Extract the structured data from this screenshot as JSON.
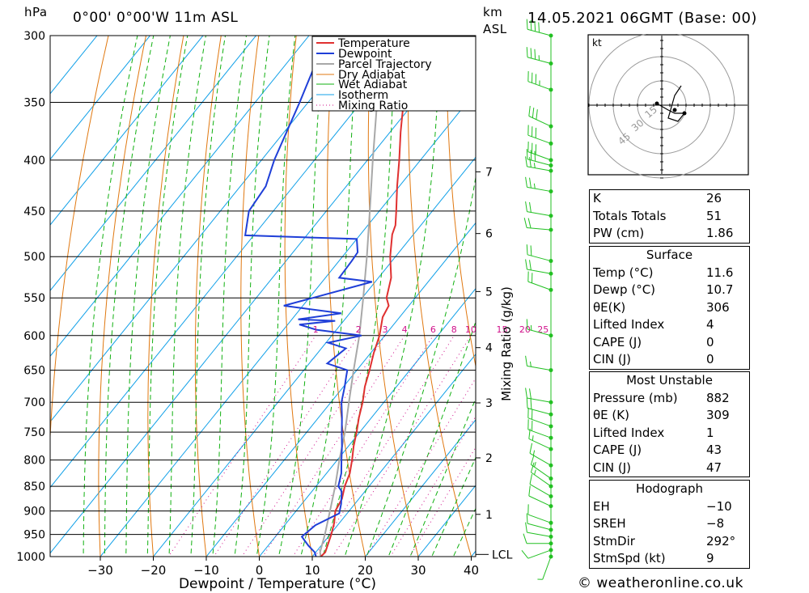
{
  "header": {
    "hpa_unit": "hPa",
    "location": "0°00' 0°00'W 11m ASL",
    "km_unit": "km",
    "asl": "ASL",
    "datetime": "14.05.2021 06GMT (Base: 00)"
  },
  "footer": {
    "credit": "© weatheronline.co.uk"
  },
  "colors": {
    "temperature": "#e03030",
    "dewpoint": "#1f3fd8",
    "parcel": "#a8a8a8",
    "dry_adiabat": "#e07810",
    "wet_adiabat": "#10b010",
    "isotherm": "#10a0e8",
    "mixing_ratio": "#d0108a",
    "wind": "#22c022"
  },
  "chart_data": {
    "type": "skew-t",
    "xlabel": "Dewpoint / Temperature (°C)",
    "ylabel_left": "hPa",
    "ylabel_right": "Mixing Ratio (g/kg)",
    "pressure_levels": [
      300,
      350,
      400,
      450,
      500,
      550,
      600,
      650,
      700,
      750,
      800,
      850,
      900,
      950,
      1000
    ],
    "pressure_labels": [
      "300",
      "350",
      "400",
      "450",
      "500",
      "550",
      "600",
      "650",
      "700",
      "750",
      "800",
      "850",
      "900",
      "950",
      "1000"
    ],
    "temperature_ticks": [
      -30,
      -20,
      -10,
      0,
      10,
      20,
      30,
      40
    ],
    "temperature_labels": [
      "−30",
      "−20",
      "−10",
      "0",
      "10",
      "20",
      "30",
      "40"
    ],
    "km_levels": [
      {
        "km": 1,
        "label": "1",
        "p": 907
      },
      {
        "km": 2,
        "label": "2",
        "p": 796
      },
      {
        "km": 3,
        "label": "3",
        "p": 701
      },
      {
        "km": 4,
        "label": "4",
        "p": 617
      },
      {
        "km": 5,
        "label": "5",
        "p": 542
      },
      {
        "km": 6,
        "label": "6",
        "p": 474
      },
      {
        "km": 7,
        "label": "7",
        "p": 411
      }
    ],
    "lcl_label": "LCL",
    "lcl_pressure": 995,
    "mixing_ratio_labels": [
      "1",
      "2",
      "3",
      "4",
      "6",
      "8",
      "10",
      "15",
      "20",
      "25"
    ],
    "mixing_ratio_values": [
      1,
      2,
      3,
      4,
      6,
      8,
      10,
      15,
      20,
      25
    ],
    "legend": [
      "Temperature",
      "Dewpoint",
      "Parcel Trajectory",
      "Dry Adiabat",
      "Wet Adiabat",
      "Isotherm",
      "Mixing Ratio"
    ],
    "temperature_profile": [
      [
        1000,
        11.6
      ],
      [
        990,
        11.8
      ],
      [
        975,
        11.2
      ],
      [
        950,
        10.2
      ],
      [
        925,
        9.0
      ],
      [
        900,
        7.4
      ],
      [
        875,
        6.8
      ],
      [
        850,
        5.4
      ],
      [
        825,
        4.4
      ],
      [
        800,
        2.8
      ],
      [
        775,
        1.0
      ],
      [
        750,
        -0.6
      ],
      [
        725,
        -2.4
      ],
      [
        700,
        -4.0
      ],
      [
        675,
        -6.0
      ],
      [
        650,
        -7.6
      ],
      [
        625,
        -9.4
      ],
      [
        600,
        -11.0
      ],
      [
        575,
        -13.2
      ],
      [
        560,
        -13.8
      ],
      [
        550,
        -15.4
      ],
      [
        525,
        -17.6
      ],
      [
        500,
        -21.0
      ],
      [
        475,
        -24.0
      ],
      [
        465,
        -24.8
      ],
      [
        450,
        -26.8
      ],
      [
        425,
        -30.4
      ],
      [
        400,
        -34.0
      ],
      [
        375,
        -38.0
      ],
      [
        350,
        -42.0
      ],
      [
        325,
        -46.0
      ],
      [
        300,
        -50.0
      ]
    ],
    "dewpoint_profile": [
      [
        1000,
        10.7
      ],
      [
        990,
        9.8
      ],
      [
        975,
        7.6
      ],
      [
        955,
        5.0
      ],
      [
        930,
        5.8
      ],
      [
        905,
        8.5
      ],
      [
        885,
        7.4
      ],
      [
        860,
        5.6
      ],
      [
        850,
        4.2
      ],
      [
        825,
        2.8
      ],
      [
        800,
        0.8
      ],
      [
        775,
        -1.2
      ],
      [
        750,
        -3.4
      ],
      [
        725,
        -5.6
      ],
      [
        700,
        -8.0
      ],
      [
        675,
        -9.8
      ],
      [
        660,
        -11.0
      ],
      [
        650,
        -11.8
      ],
      [
        640,
        -16.6
      ],
      [
        618,
        -15.4
      ],
      [
        610,
        -19.6
      ],
      [
        600,
        -14.4
      ],
      [
        592,
        -23.8
      ],
      [
        585,
        -27.8
      ],
      [
        580,
        -21.6
      ],
      [
        578,
        -28.8
      ],
      [
        570,
        -21.6
      ],
      [
        560,
        -33.6
      ],
      [
        530,
        -20.6
      ],
      [
        525,
        -27.4
      ],
      [
        505,
        -27.6
      ],
      [
        495,
        -27.8
      ],
      [
        480,
        -30.0
      ],
      [
        476,
        -51.6
      ],
      [
        450,
        -54.6
      ],
      [
        425,
        -55.2
      ],
      [
        400,
        -57.6
      ],
      [
        350,
        -61.6
      ],
      [
        300,
        -66.6
      ]
    ],
    "parcel_profile": [
      [
        1000,
        11.6
      ],
      [
        990,
        10.8
      ],
      [
        950,
        9.0
      ],
      [
        900,
        6.4
      ],
      [
        850,
        3.6
      ],
      [
        800,
        0.4
      ],
      [
        750,
        -2.8
      ],
      [
        700,
        -6.6
      ],
      [
        650,
        -10.6
      ],
      [
        600,
        -14.8
      ],
      [
        550,
        -19.8
      ],
      [
        500,
        -25.4
      ],
      [
        450,
        -31.8
      ],
      [
        400,
        -39.0
      ],
      [
        350,
        -47.0
      ],
      [
        300,
        -56.0
      ]
    ],
    "wind_barbs": [
      {
        "p": 1000,
        "dir": 200,
        "spd": 9
      },
      {
        "p": 985,
        "dir": 250,
        "spd": 10
      },
      {
        "p": 970,
        "dir": 270,
        "spd": 10
      },
      {
        "p": 955,
        "dir": 280,
        "spd": 10
      },
      {
        "p": 940,
        "dir": 285,
        "spd": 10
      },
      {
        "p": 925,
        "dir": 290,
        "spd": 10
      },
      {
        "p": 890,
        "dir": 295,
        "spd": 10
      },
      {
        "p": 870,
        "dir": 300,
        "spd": 10
      },
      {
        "p": 850,
        "dir": 305,
        "spd": 15
      },
      {
        "p": 835,
        "dir": 305,
        "spd": 15
      },
      {
        "p": 810,
        "dir": 300,
        "spd": 15
      },
      {
        "p": 780,
        "dir": 295,
        "spd": 15
      },
      {
        "p": 760,
        "dir": 290,
        "spd": 20
      },
      {
        "p": 740,
        "dir": 290,
        "spd": 20
      },
      {
        "p": 720,
        "dir": 285,
        "spd": 20
      },
      {
        "p": 700,
        "dir": 280,
        "spd": 20
      },
      {
        "p": 650,
        "dir": 280,
        "spd": 15
      },
      {
        "p": 600,
        "dir": 285,
        "spd": 15
      },
      {
        "p": 540,
        "dir": 290,
        "spd": 20
      },
      {
        "p": 520,
        "dir": 280,
        "spd": 20
      },
      {
        "p": 505,
        "dir": 285,
        "spd": 20
      },
      {
        "p": 470,
        "dir": 275,
        "spd": 20
      },
      {
        "p": 455,
        "dir": 280,
        "spd": 20
      },
      {
        "p": 430,
        "dir": 280,
        "spd": 25
      },
      {
        "p": 410,
        "dir": 280,
        "spd": 25
      },
      {
        "p": 405,
        "dir": 285,
        "spd": 30
      },
      {
        "p": 400,
        "dir": 290,
        "spd": 30
      },
      {
        "p": 385,
        "dir": 290,
        "spd": 30
      },
      {
        "p": 370,
        "dir": 295,
        "spd": 30
      },
      {
        "p": 340,
        "dir": 290,
        "spd": 35
      },
      {
        "p": 320,
        "dir": 285,
        "spd": 35
      },
      {
        "p": 300,
        "dir": 285,
        "spd": 40
      }
    ],
    "hodograph": {
      "unit": "kt",
      "ring_labels": [
        "15",
        "30",
        "45"
      ],
      "points": [
        [
          -3,
          1
        ],
        [
          4,
          -3
        ],
        [
          8,
          -5
        ],
        [
          14,
          -5
        ],
        [
          10,
          -10
        ],
        [
          4,
          -8
        ],
        [
          8,
          6
        ],
        [
          12,
          12
        ]
      ],
      "storm_motion": [
        8,
        -3
      ]
    }
  },
  "indices": {
    "k": {
      "label": "K",
      "value": "26"
    },
    "totals": {
      "label": "Totals Totals",
      "value": "51"
    },
    "pw": {
      "label": "PW (cm)",
      "value": "1.86"
    }
  },
  "surface": {
    "title": "Surface",
    "temp": {
      "label": "Temp (°C)",
      "value": "11.6"
    },
    "dewp": {
      "label": "Dewp (°C)",
      "value": "10.7"
    },
    "theta": {
      "label": "θE(K)",
      "value": "306"
    },
    "li": {
      "label": "Lifted Index",
      "value": "4"
    },
    "cape": {
      "label": "CAPE (J)",
      "value": "0"
    },
    "cin": {
      "label": "CIN (J)",
      "value": "0"
    }
  },
  "most_unstable": {
    "title": "Most Unstable",
    "pressure": {
      "label": "Pressure (mb)",
      "value": "882"
    },
    "theta": {
      "label": "θE (K)",
      "value": "309"
    },
    "li": {
      "label": "Lifted Index",
      "value": "1"
    },
    "cape": {
      "label": "CAPE (J)",
      "value": "43"
    },
    "cin": {
      "label": "CIN (J)",
      "value": "47"
    }
  },
  "hodo_table": {
    "title": "Hodograph",
    "eh": {
      "label": "EH",
      "value": "−10"
    },
    "sreh": {
      "label": "SREH",
      "value": "−8"
    },
    "stmdir": {
      "label": "StmDir",
      "value": "292°"
    },
    "stmspd": {
      "label": "StmSpd (kt)",
      "value": "9"
    }
  }
}
